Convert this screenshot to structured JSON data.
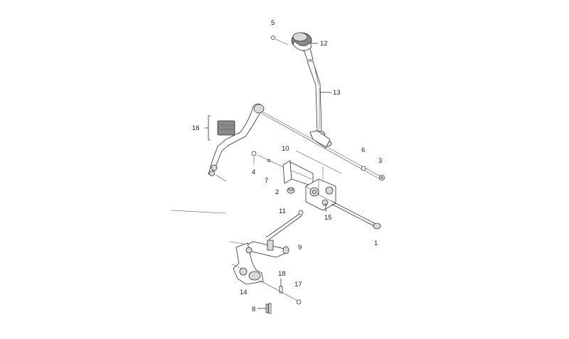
{
  "diagram": {
    "callouts": {
      "c1": "1",
      "c2": "2",
      "c3": "3",
      "c4": "4",
      "c5": "5",
      "c6": "6",
      "c7": "7",
      "c8": "8",
      "c9": "9",
      "c10": "10",
      "c11": "11",
      "c12": "12",
      "c13": "13",
      "c14": "14",
      "c15": "15",
      "c16": "16",
      "c17": "17",
      "c18": "18"
    }
  }
}
